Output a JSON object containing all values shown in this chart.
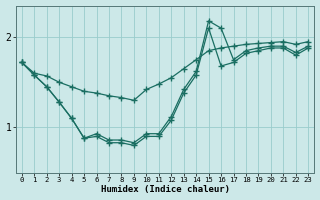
{
  "xlabel": "Humidex (Indice chaleur)",
  "bg_color": "#cce8e8",
  "line_color": "#1a6e62",
  "grid_color": "#99cccc",
  "xlim": [
    -0.5,
    23.5
  ],
  "ylim": [
    0.5,
    2.35
  ],
  "yticks": [
    1,
    2
  ],
  "xticks": [
    0,
    1,
    2,
    3,
    4,
    5,
    6,
    7,
    8,
    9,
    10,
    11,
    12,
    13,
    14,
    15,
    16,
    17,
    18,
    19,
    20,
    21,
    22,
    23
  ],
  "series": [
    {
      "x": [
        0,
        1,
        2,
        3,
        4,
        5,
        6,
        7,
        8,
        9,
        10,
        11,
        12,
        13,
        14,
        15,
        16,
        17,
        18,
        19,
        20,
        21,
        22,
        23
      ],
      "y": [
        1.72,
        1.6,
        1.57,
        1.5,
        1.45,
        1.4,
        1.38,
        1.35,
        1.33,
        1.3,
        1.42,
        1.48,
        1.55,
        1.65,
        1.75,
        1.85,
        1.88,
        1.9,
        1.92,
        1.93,
        1.94,
        1.95,
        1.92,
        1.95
      ]
    },
    {
      "x": [
        0,
        1,
        2,
        3,
        4,
        5,
        6,
        7,
        8,
        9,
        10,
        11,
        12,
        13,
        14,
        15,
        16,
        17,
        18,
        19,
        20,
        21,
        22,
        23
      ],
      "y": [
        1.72,
        1.58,
        1.45,
        1.28,
        1.1,
        0.88,
        0.9,
        0.83,
        0.83,
        0.8,
        0.9,
        0.9,
        1.08,
        1.38,
        1.58,
        2.1,
        1.68,
        1.72,
        1.82,
        1.85,
        1.88,
        1.88,
        1.8,
        1.88
      ]
    },
    {
      "x": [
        0,
        1,
        2,
        3,
        4,
        5,
        6,
        7,
        8,
        9,
        10,
        11,
        12,
        13,
        14,
        15,
        16,
        17,
        18,
        19,
        20,
        21,
        22,
        23
      ],
      "y": [
        1.72,
        1.58,
        1.45,
        1.28,
        1.1,
        0.88,
        0.93,
        0.86,
        0.86,
        0.83,
        0.93,
        0.93,
        1.12,
        1.42,
        1.62,
        2.18,
        2.1,
        1.75,
        1.85,
        1.88,
        1.9,
        1.9,
        1.83,
        1.9
      ]
    }
  ]
}
